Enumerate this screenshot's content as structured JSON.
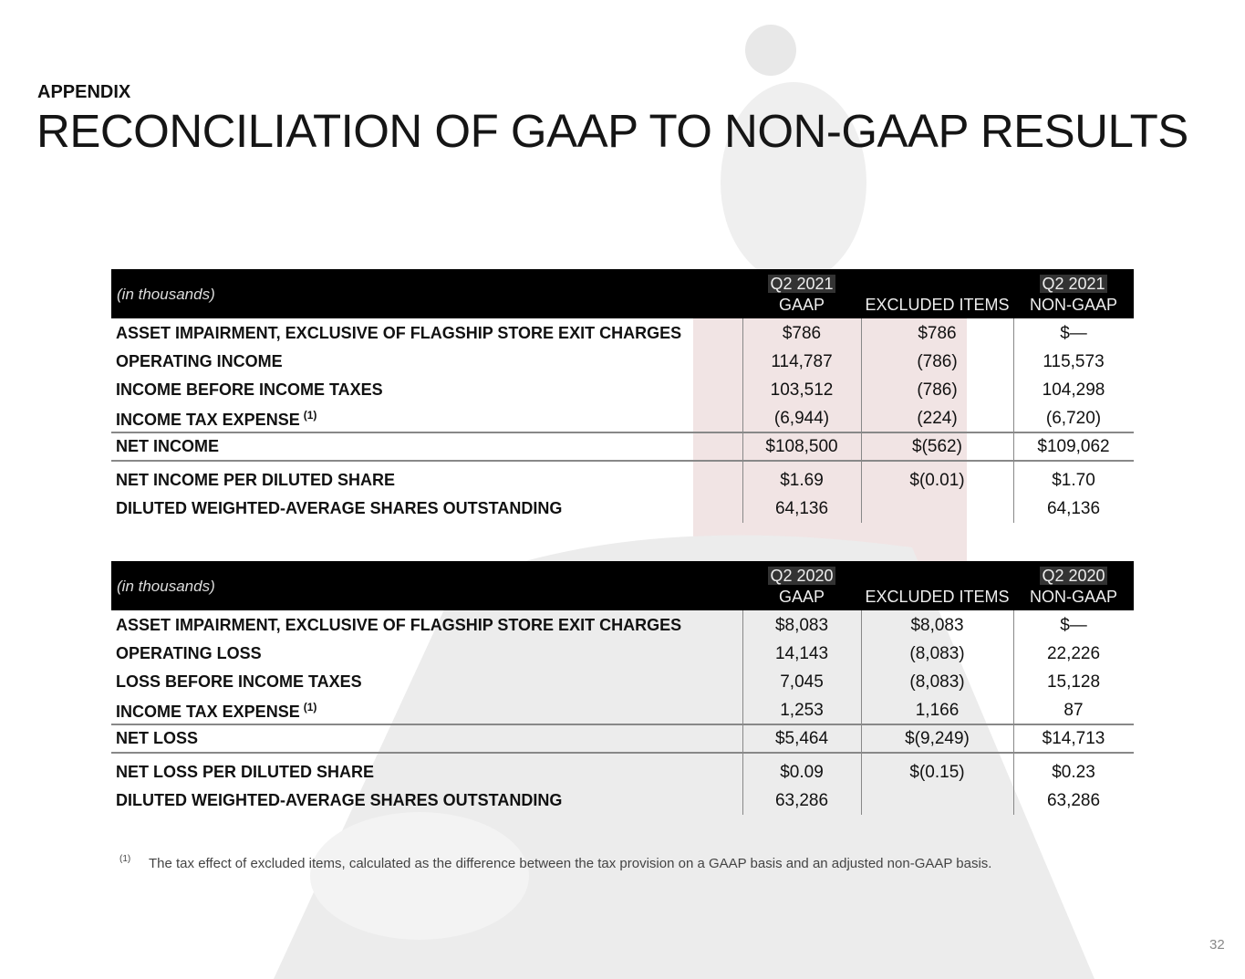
{
  "header": {
    "kicker": "APPENDIX",
    "title": "RECONCILIATION OF GAAP TO NON-GAAP RESULTS"
  },
  "tables": [
    {
      "caption": "(in thousands)",
      "columns": [
        [
          "Q2 2021",
          "GAAP"
        ],
        [
          "EXCLUDED ITEMS"
        ],
        [
          "Q2 2021",
          "NON-GAAP"
        ]
      ],
      "rows": [
        {
          "label": "ASSET IMPAIRMENT, EXCLUSIVE OF FLAGSHIP STORE EXIT CHARGES",
          "cells": [
            "$786",
            "$786",
            "$—"
          ]
        },
        {
          "label": "OPERATING INCOME",
          "cells": [
            "114,787",
            "(786)",
            "115,573"
          ]
        },
        {
          "label": "INCOME BEFORE INCOME TAXES",
          "cells": [
            "103,512",
            "(786)",
            "104,298"
          ]
        },
        {
          "label": "INCOME TAX EXPENSE",
          "note": "(1)",
          "cells": [
            "(6,944)",
            "(224)",
            "(6,720)"
          ]
        },
        {
          "label": "NET INCOME",
          "cells": [
            "$108,500",
            "$(562)",
            "$109,062"
          ]
        },
        {
          "label": "NET INCOME PER DILUTED SHARE",
          "cells": [
            "$1.69",
            "$(0.01)",
            "$1.70"
          ]
        },
        {
          "label": "DILUTED WEIGHTED-AVERAGE SHARES OUTSTANDING",
          "cells": [
            "64,136",
            null,
            "64,136"
          ]
        }
      ]
    },
    {
      "caption": "(in thousands)",
      "columns": [
        [
          "Q2 2020",
          "GAAP"
        ],
        [
          "EXCLUDED ITEMS"
        ],
        [
          "Q2 2020",
          "NON-GAAP"
        ]
      ],
      "rows": [
        {
          "label": "ASSET IMPAIRMENT, EXCLUSIVE OF FLAGSHIP STORE EXIT CHARGES",
          "cells": [
            "$8,083",
            "$8,083",
            "$—"
          ]
        },
        {
          "label": "OPERATING LOSS",
          "cells": [
            "14,143",
            "(8,083)",
            "22,226"
          ]
        },
        {
          "label": "LOSS BEFORE INCOME TAXES",
          "cells": [
            "7,045",
            "(8,083)",
            "15,128"
          ]
        },
        {
          "label": "INCOME TAX EXPENSE",
          "note": "(1)",
          "cells": [
            "1,253",
            "1,166",
            "87"
          ]
        },
        {
          "label": "NET LOSS",
          "cells": [
            "$5,464",
            "$(9,249)",
            "$14,713"
          ]
        },
        {
          "label": "NET LOSS PER DILUTED SHARE",
          "cells": [
            "$0.09",
            "$(0.15)",
            "$0.23"
          ]
        },
        {
          "label": "DILUTED WEIGHTED-AVERAGE SHARES OUTSTANDING",
          "cells": [
            "63,286",
            null,
            "63,286"
          ]
        }
      ]
    }
  ],
  "footnote": {
    "marker": "(1)",
    "text": "The tax effect of excluded items, calculated as the difference between the tax provision on a GAAP basis and an adjusted non-GAAP basis."
  },
  "page_number": "32"
}
